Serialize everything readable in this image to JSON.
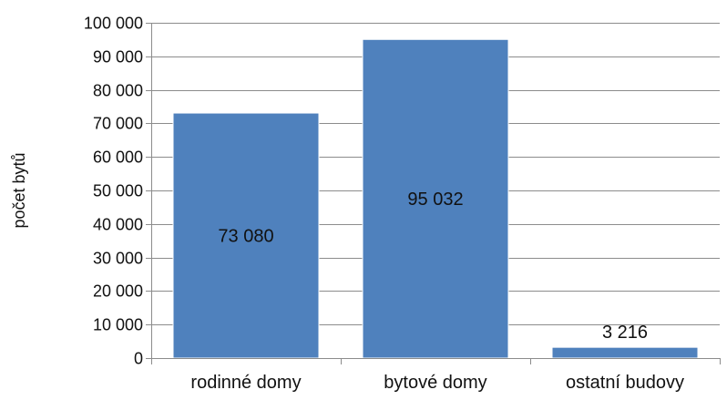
{
  "chart_data": {
    "type": "bar",
    "categories": [
      "rodinné domy",
      "bytové domy",
      "ostatní budovy"
    ],
    "values": [
      73080,
      95032,
      3216
    ],
    "data_labels": [
      "73 080",
      "95 032",
      "3 216"
    ],
    "ylabel": "počet bytů",
    "xlabel": "",
    "ylim": [
      0,
      100000
    ],
    "yticks": [
      0,
      10000,
      20000,
      30000,
      40000,
      50000,
      60000,
      70000,
      80000,
      90000,
      100000
    ],
    "ytick_labels": [
      "0",
      "10 000",
      "20 000",
      "30 000",
      "40 000",
      "50 000",
      "60 000",
      "70 000",
      "80 000",
      "90 000",
      "100 000"
    ],
    "grid": true,
    "legend": "none",
    "bar_color": "#4F81BD"
  }
}
